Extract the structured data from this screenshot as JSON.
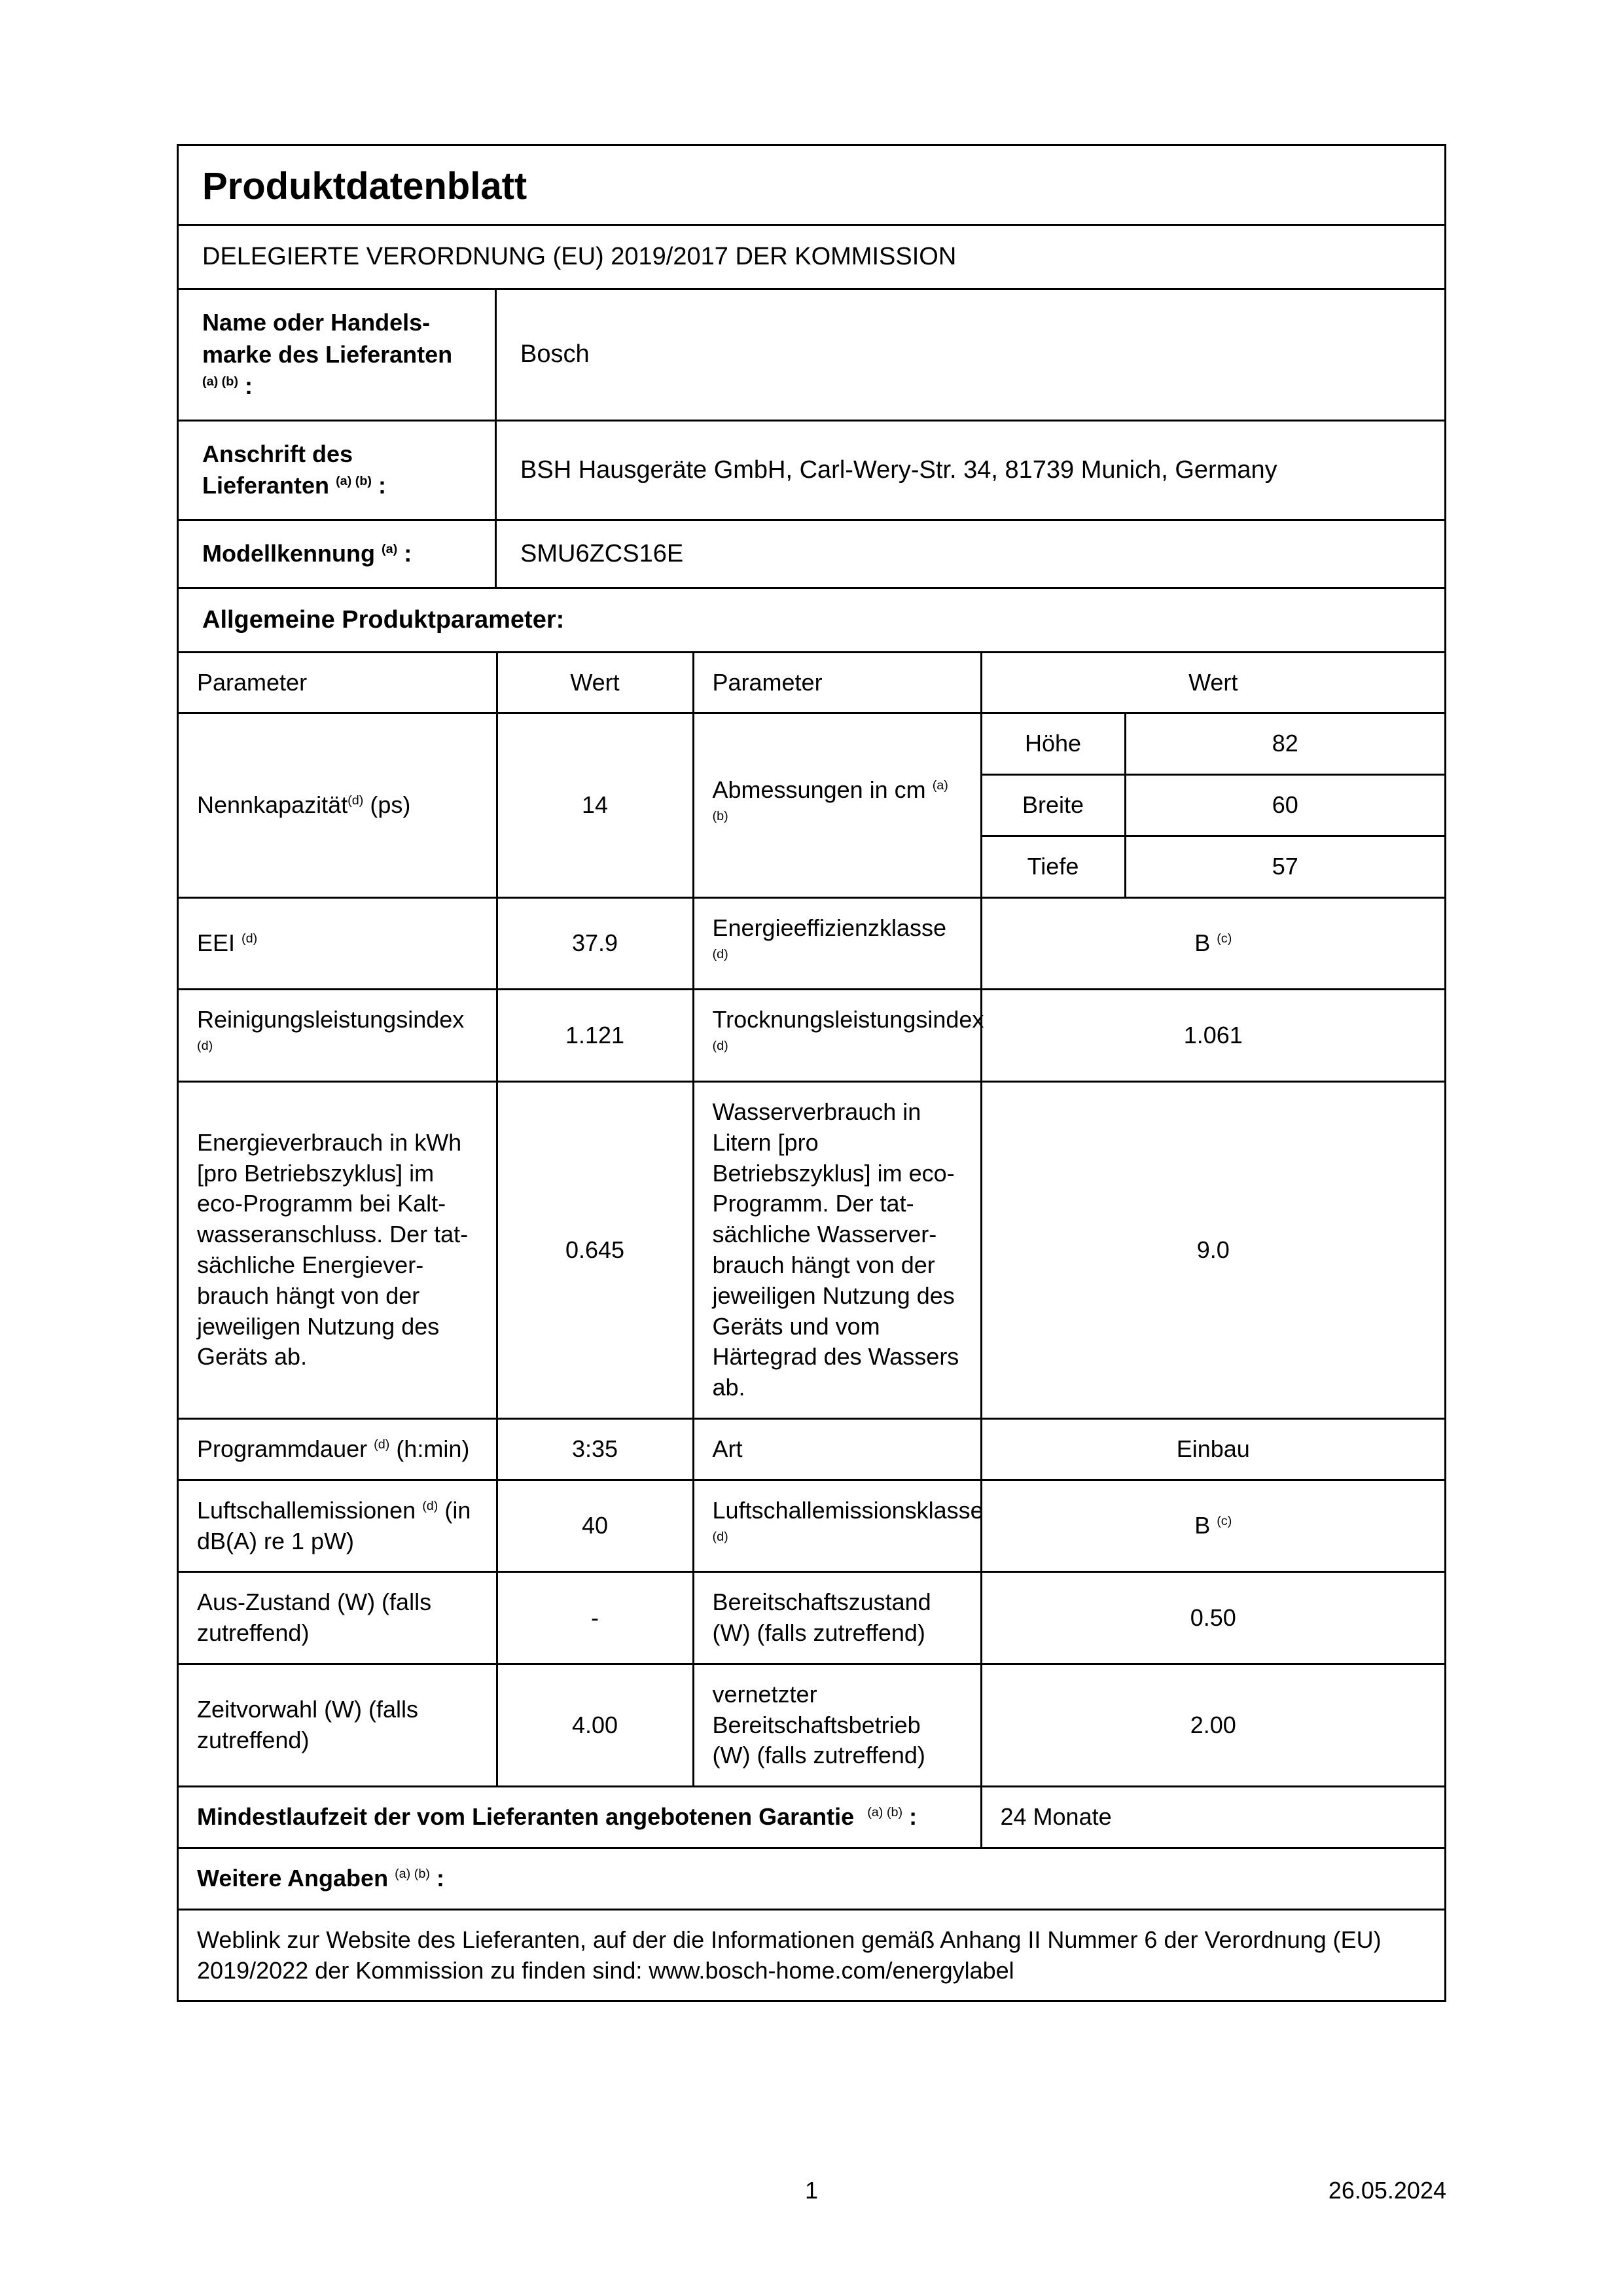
{
  "title": "Produktdatenblatt",
  "subtitle": "DELEGIERTE VERORDNUNG (EU) 2019/2017 DER KOMMISSION",
  "supplier_name": {
    "label": "Name oder Handels­marke des Lieferanten",
    "fn": "(a) (b)",
    "value": "Bosch"
  },
  "supplier_addr": {
    "label": "Anschrift des Lieferanten",
    "fn": "(a) (b)",
    "value": "BSH Hausgeräte GmbH, Carl-Wery-Str. 34, 81739 Munich, Germany"
  },
  "model_id": {
    "label": "Modellkennung",
    "fn": "(a)",
    "value": "SMU6ZCS16E"
  },
  "params_header": "Allgemeine Produktparameter:",
  "col_headers": {
    "param": "Parameter",
    "value": "Wert"
  },
  "dim_header": {
    "label": "Abmessungen in cm",
    "fn": "(a) (b)"
  },
  "dims": {
    "h": {
      "label": "Höhe",
      "value": "82"
    },
    "w": {
      "label": "Breite",
      "value": "60"
    },
    "d": {
      "label": "Tiefe",
      "value": "57"
    }
  },
  "rows1": {
    "capacity": {
      "label": "Nennkapazität",
      "fn": "(d)",
      "suffix": " (ps)",
      "value": "14"
    }
  },
  "rows": [
    {
      "l_label": "EEI",
      "l_fn": "(d)",
      "l_value": "37.9",
      "r_label": "Energieeffizienzklasse",
      "r_fn": "(d)",
      "r_value": "B",
      "r_value_fn": "(c)"
    },
    {
      "l_label": "Reinigungsleistungsindex",
      "l_fn": "(d)",
      "l_value": "1.121",
      "r_label": "Trocknungsleistungsindex",
      "r_fn": "(d)",
      "r_value": "1.061"
    },
    {
      "l_label": "Energieverbrauch in kWh [pro Betriebszyklus] im eco-Programm bei Kalt­wasseranschluss. Der tat­sächliche Energiever­brauch hängt von der jeweiligen Nutzung des Geräts ab.",
      "l_value": "0.645",
      "r_label": "Wasserverbrauch in Litern [pro Betriebszyklus] im eco-Programm. Der tat­sächliche Wasserver­brauch hängt von der jeweiligen Nutzung des Geräts und vom Härtegrad des Wassers ab.",
      "r_value": "9.0"
    },
    {
      "l_label": "Programmdauer",
      "l_fn": "(d)",
      "l_suffix": " (h:min)",
      "l_value": "3:35",
      "r_label": "Art",
      "r_value": "Einbau"
    },
    {
      "l_label": "Luftschallemissionen",
      "l_fn": "(d)",
      "l_suffix": " (in dB(A) re 1 pW)",
      "l_value": "40",
      "r_label": "Luftschallemissionsklasse",
      "r_fn": "(d)",
      "r_value": "B",
      "r_value_fn": "(c)"
    },
    {
      "l_label": "Aus-Zustand (W) (falls zutreffend)",
      "l_value": "-",
      "r_label": "Bereitschaftszustand (W) (falls zutreffend)",
      "r_value": "0.50"
    },
    {
      "l_label": "Zeitvorwahl (W) (falls zutreffend)",
      "l_value": "4.00",
      "r_label": "vernetzter Bereitschaftsbe­trieb (W) (falls zutreffend)",
      "r_value": "2.00"
    }
  ],
  "warranty": {
    "label": "Mindestlaufzeit der vom Lieferanten angebotenen Garantie",
    "fn": "(a) (b)",
    "value": "24 Monate"
  },
  "more_info": {
    "label": "Weitere Angaben",
    "fn": "(a) (b)"
  },
  "weblink": "Weblink zur Website des Lieferanten, auf der die Informationen gemäß Anhang II Nummer 6 der Verord­nung (EU) 2019/2022 der Kommission zu finden sind: www.bosch-home.com/energylabel",
  "footer": {
    "page": "1",
    "date": "26.05.2024"
  }
}
